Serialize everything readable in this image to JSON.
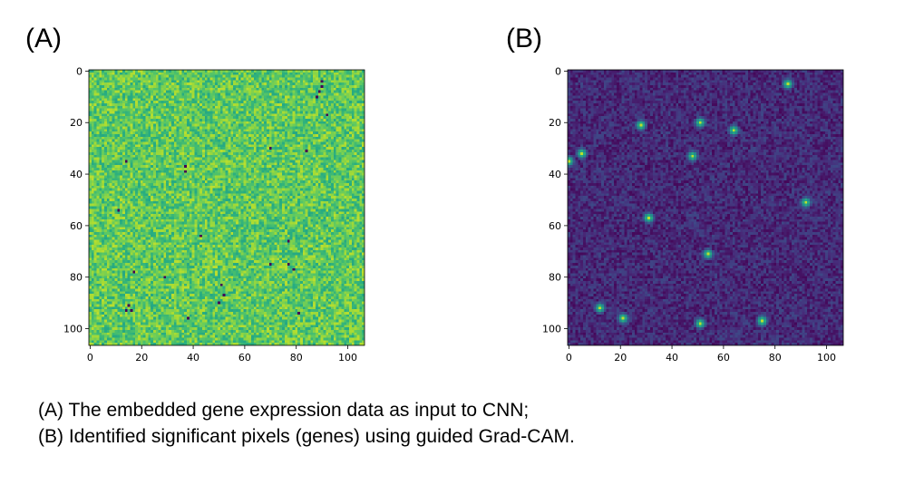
{
  "panel_labels": {
    "a": "(A)",
    "b": "(B)"
  },
  "captions": {
    "a": "(A) The embedded gene expression data as input to CNN;",
    "b": "(B) Identified significant pixels (genes) using guided Grad-CAM."
  },
  "chart_data": [
    {
      "type": "heatmap",
      "panel": "(A)",
      "title": "",
      "xlabel": "",
      "ylabel": "",
      "grid_size": 107,
      "xlim": [
        0,
        106
      ],
      "ylim": [
        106,
        0
      ],
      "x_ticks": [
        0,
        20,
        40,
        60,
        80,
        100
      ],
      "y_ticks": [
        0,
        20,
        40,
        60,
        80,
        100
      ],
      "colormap": "viridis",
      "background_level": 0.75,
      "background_variation": 0.15,
      "low_value_pixels": [
        [
          90,
          4
        ],
        [
          90,
          6
        ],
        [
          89,
          8
        ],
        [
          88,
          10
        ],
        [
          92,
          17
        ],
        [
          84,
          31
        ],
        [
          70,
          30
        ],
        [
          14,
          35
        ],
        [
          37,
          37
        ],
        [
          37,
          39
        ],
        [
          11,
          54
        ],
        [
          43,
          64
        ],
        [
          77,
          66
        ],
        [
          70,
          75
        ],
        [
          77,
          75
        ],
        [
          79,
          77
        ],
        [
          17,
          78
        ],
        [
          29,
          80
        ],
        [
          51,
          83
        ],
        [
          52,
          87
        ],
        [
          50,
          90
        ],
        [
          15,
          91
        ],
        [
          14,
          93
        ],
        [
          16,
          93
        ],
        [
          81,
          94
        ],
        [
          38,
          96
        ]
      ]
    },
    {
      "type": "heatmap",
      "panel": "(B)",
      "title": "",
      "xlabel": "",
      "ylabel": "",
      "grid_size": 107,
      "xlim": [
        0,
        106
      ],
      "ylim": [
        106,
        0
      ],
      "x_ticks": [
        0,
        20,
        40,
        60,
        80,
        100
      ],
      "y_ticks": [
        0,
        20,
        40,
        60,
        80,
        100
      ],
      "colormap": "viridis",
      "background_level": 0.12,
      "background_variation": 0.1,
      "hot_spots": [
        [
          85,
          5
        ],
        [
          51,
          20
        ],
        [
          28,
          21
        ],
        [
          64,
          23
        ],
        [
          5,
          32
        ],
        [
          48,
          33
        ],
        [
          0,
          35
        ],
        [
          92,
          51
        ],
        [
          31,
          57
        ],
        [
          54,
          71
        ],
        [
          12,
          92
        ],
        [
          21,
          96
        ],
        [
          51,
          98
        ],
        [
          75,
          97
        ]
      ]
    }
  ]
}
